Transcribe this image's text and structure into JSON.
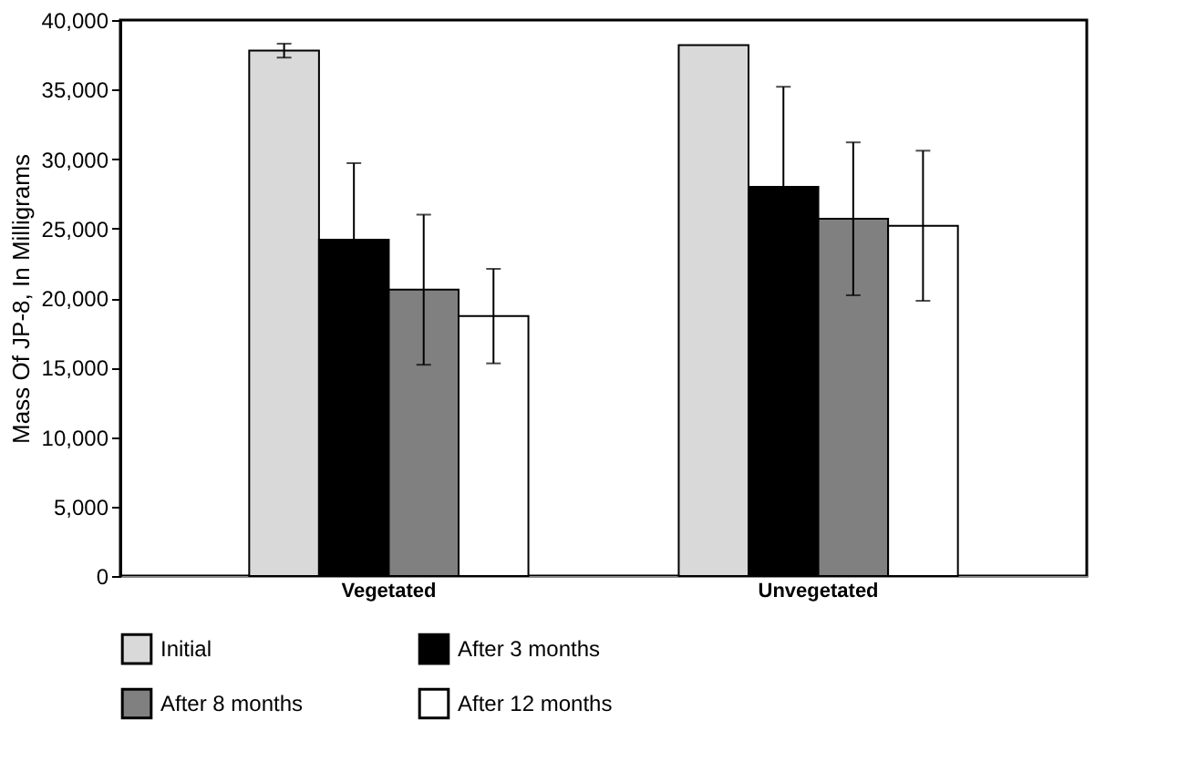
{
  "chart_data": {
    "type": "bar",
    "ylabel": "Mass Of JP-8, In Milligrams",
    "categories": [
      "Vegetated",
      "Unvegetated"
    ],
    "series": [
      {
        "name": "Initial",
        "color": "#d9d9d9",
        "values": [
          37800,
          38200
        ],
        "errors": [
          500,
          null
        ]
      },
      {
        "name": "After 3 months",
        "color": "#000000",
        "values": [
          24200,
          28000
        ],
        "errors": [
          5500,
          7200
        ]
      },
      {
        "name": "After 8 months",
        "color": "#808080",
        "values": [
          20600,
          25700
        ],
        "errors": [
          5400,
          5500
        ]
      },
      {
        "name": "After 12 months",
        "color": "#ffffff",
        "values": [
          18700,
          25200
        ],
        "errors": [
          3400,
          5400
        ]
      }
    ],
    "ylim": [
      0,
      40000
    ],
    "yticks": [
      {
        "value": 0,
        "label": "0"
      },
      {
        "value": 5000,
        "label": "5,000"
      },
      {
        "value": 10000,
        "label": "10,000"
      },
      {
        "value": 15000,
        "label": "15,000"
      },
      {
        "value": 20000,
        "label": "20,000"
      },
      {
        "value": 25000,
        "label": "25,000"
      },
      {
        "value": 30000,
        "label": "30,000"
      },
      {
        "value": 35000,
        "label": "35,000"
      },
      {
        "value": 40000,
        "label": "40,000"
      }
    ],
    "grid": false,
    "legend": "bottom"
  }
}
